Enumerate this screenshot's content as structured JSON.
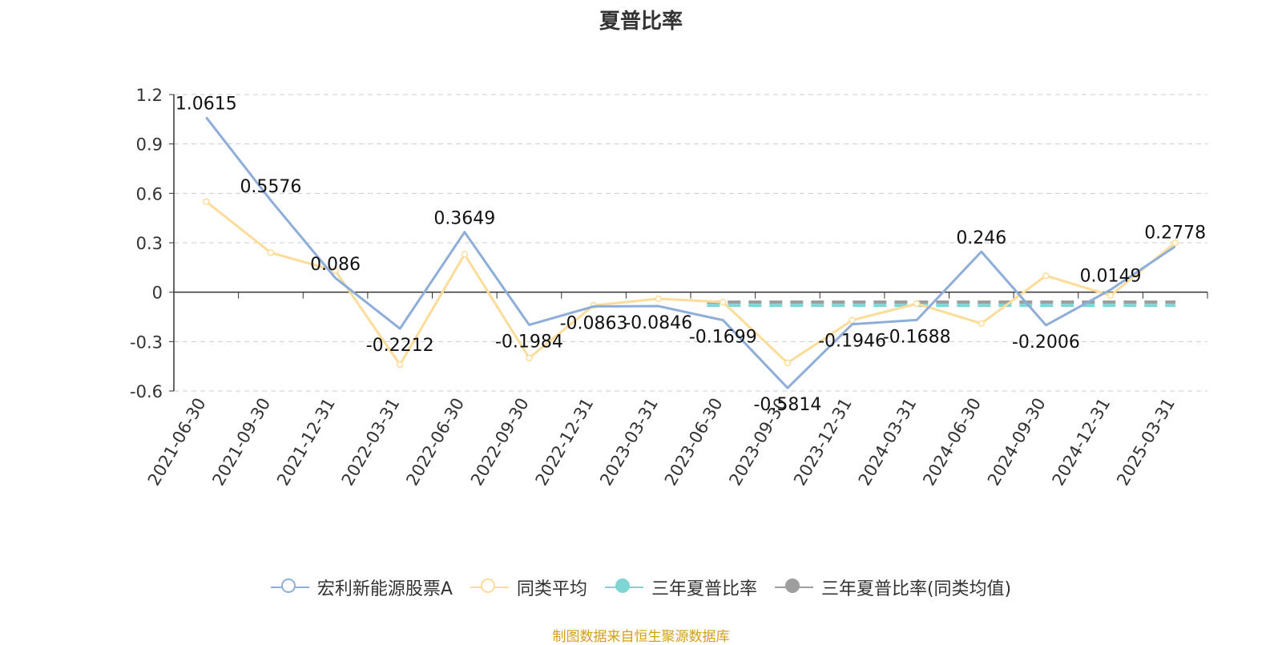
{
  "chart_data": {
    "type": "line",
    "title": "夏普比率",
    "categories": [
      "2021-06-30",
      "2021-09-30",
      "2021-12-31",
      "2022-03-31",
      "2022-06-30",
      "2022-09-30",
      "2022-12-31",
      "2023-03-31",
      "2023-06-30",
      "2023-09-30",
      "2023-12-31",
      "2024-03-31",
      "2024-06-30",
      "2024-09-30",
      "2024-12-31",
      "2025-03-31"
    ],
    "series": [
      {
        "name": "宏利新能源股票A",
        "color": "#8eaed9",
        "values": [
          1.0615,
          0.5576,
          0.086,
          -0.2212,
          0.3649,
          -0.1984,
          -0.0863,
          -0.0846,
          -0.1699,
          -0.5814,
          -0.1946,
          -0.1688,
          0.246,
          -0.2006,
          0.0149,
          0.2778
        ]
      },
      {
        "name": "同类平均",
        "color": "#fddc9a",
        "values": [
          0.55,
          0.24,
          0.13,
          -0.44,
          0.23,
          -0.4,
          -0.08,
          -0.04,
          -0.06,
          -0.43,
          -0.17,
          -0.07,
          -0.19,
          0.1,
          -0.02,
          0.3
        ]
      }
    ],
    "reference_lines": [
      {
        "name": "三年夏普比率",
        "color": "#7fd4d4",
        "value": -0.08,
        "from_index": 8
      },
      {
        "name": "三年夏普比率(同类均值)",
        "color": "#9e9e9e",
        "value": -0.06,
        "from_index": 8
      }
    ],
    "ylim": [
      -0.6,
      1.2
    ],
    "yticks": [
      "1.2",
      "0.9",
      "0.6",
      "0.3",
      "0",
      "-0.3",
      "-0.6"
    ],
    "ytick_values": [
      1.2,
      0.9,
      0.6,
      0.3,
      0,
      -0.3,
      -0.6
    ],
    "data_labels": [
      "1.0615",
      "0.5576",
      "0.086",
      "-0.2212",
      "0.3649",
      "-0.1984",
      "-0.0863",
      "-0.0846",
      "-0.1699",
      "-0.5814",
      "-0.1946",
      "-0.1688",
      "0.246",
      "-0.2006",
      "0.0149",
      "0.2778"
    ],
    "grid": true,
    "legend_position": "bottom"
  },
  "legend": [
    {
      "label": "宏利新能源股票A",
      "color": "#8eaed9",
      "style": "hollow"
    },
    {
      "label": "同类平均",
      "color": "#fddc9a",
      "style": "hollow"
    },
    {
      "label": "三年夏普比率",
      "color": "#7fd4d4",
      "style": "filled"
    },
    {
      "label": "三年夏普比率(同类均值)",
      "color": "#9e9e9e",
      "style": "filled"
    }
  ],
  "source": {
    "text": "制图数据来自恒生聚源数据库",
    "color": "#d4a017"
  }
}
